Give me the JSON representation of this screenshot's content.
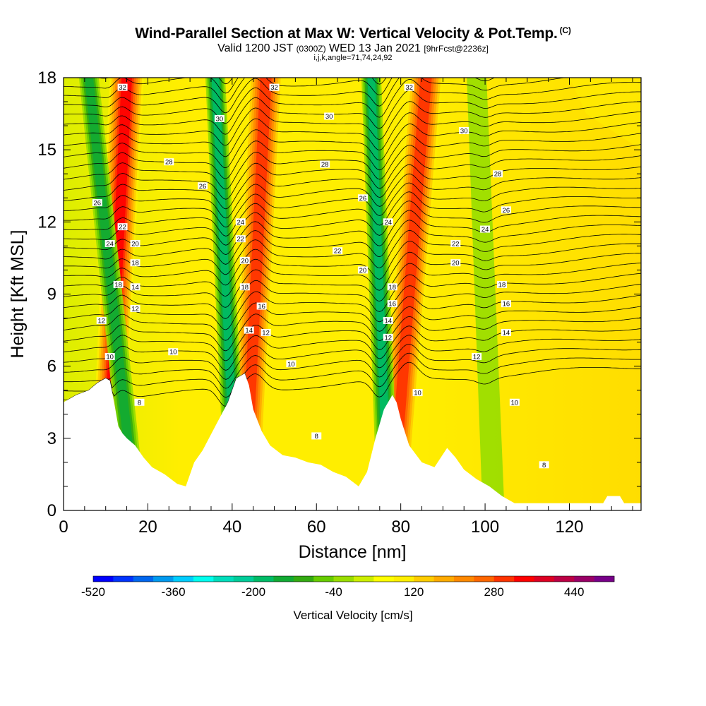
{
  "title": {
    "main": "Wind-Parallel Section at Max W: Vertical Velocity & Pot.Temp.",
    "tag": "(C)",
    "valid_prefix": "Valid 1200 JST",
    "valid_utc": "(0300Z)",
    "valid_date": "WED 13 Jan 2021",
    "forecast": "[9hrFcst@2236z]",
    "indices": "i,j,k,angle=71,74,24,92"
  },
  "chart_data": {
    "type": "heatmap",
    "xlabel": "Distance [nm]",
    "ylabel": "Height [Kft MSL]",
    "xlim": [
      0,
      137
    ],
    "ylim": [
      0,
      18
    ],
    "x_ticks": [
      0,
      20,
      40,
      60,
      80,
      100,
      120
    ],
    "y_ticks": [
      0,
      3,
      6,
      9,
      12,
      15,
      18
    ],
    "colorbar": {
      "title": "Vertical Velocity [cm/s]",
      "min": -520,
      "max": 520,
      "step": 40,
      "tick_labels": [
        -520,
        -360,
        -200,
        -40,
        120,
        280,
        440
      ],
      "colors": [
        "#0000ff",
        "#0033ff",
        "#0066ee",
        "#0099ee",
        "#00ccff",
        "#00ffee",
        "#00ddbb",
        "#00cc99",
        "#00bb66",
        "#11aa33",
        "#33aa11",
        "#66cc00",
        "#99dd00",
        "#ccee00",
        "#ffff00",
        "#ffee00",
        "#ffcc00",
        "#ffaa00",
        "#ff8800",
        "#ff6600",
        "#ff3300",
        "#ff0000",
        "#dd0022",
        "#bb0044",
        "#990066",
        "#770088"
      ]
    },
    "terrain_height_kft": [
      {
        "x": 0,
        "h": 4.5
      },
      {
        "x": 3,
        "h": 4.8
      },
      {
        "x": 6,
        "h": 5.0
      },
      {
        "x": 8,
        "h": 5.3
      },
      {
        "x": 10,
        "h": 5.5
      },
      {
        "x": 11,
        "h": 5.4
      },
      {
        "x": 12,
        "h": 4.5
      },
      {
        "x": 13,
        "h": 3.5
      },
      {
        "x": 14,
        "h": 3.2
      },
      {
        "x": 15,
        "h": 3.0
      },
      {
        "x": 17,
        "h": 2.7
      },
      {
        "x": 19,
        "h": 2.2
      },
      {
        "x": 21,
        "h": 1.8
      },
      {
        "x": 24,
        "h": 1.5
      },
      {
        "x": 27,
        "h": 1.1
      },
      {
        "x": 29,
        "h": 1.0
      },
      {
        "x": 31,
        "h": 2.0
      },
      {
        "x": 33,
        "h": 2.5
      },
      {
        "x": 36,
        "h": 3.5
      },
      {
        "x": 39,
        "h": 4.5
      },
      {
        "x": 41,
        "h": 5.5
      },
      {
        "x": 43,
        "h": 5.7
      },
      {
        "x": 44,
        "h": 5.2
      },
      {
        "x": 45,
        "h": 4.2
      },
      {
        "x": 47,
        "h": 3.3
      },
      {
        "x": 49,
        "h": 2.7
      },
      {
        "x": 52,
        "h": 2.3
      },
      {
        "x": 55,
        "h": 2.2
      },
      {
        "x": 58,
        "h": 2.0
      },
      {
        "x": 61,
        "h": 1.9
      },
      {
        "x": 64,
        "h": 1.6
      },
      {
        "x": 67,
        "h": 1.4
      },
      {
        "x": 70,
        "h": 1.0
      },
      {
        "x": 72,
        "h": 1.6
      },
      {
        "x": 74,
        "h": 3.0
      },
      {
        "x": 76,
        "h": 4.2
      },
      {
        "x": 78,
        "h": 4.8
      },
      {
        "x": 79,
        "h": 4.5
      },
      {
        "x": 80,
        "h": 3.8
      },
      {
        "x": 82,
        "h": 2.7
      },
      {
        "x": 85,
        "h": 2.0
      },
      {
        "x": 88,
        "h": 1.8
      },
      {
        "x": 91,
        "h": 2.6
      },
      {
        "x": 93,
        "h": 2.2
      },
      {
        "x": 95,
        "h": 1.7
      },
      {
        "x": 98,
        "h": 1.3
      },
      {
        "x": 101,
        "h": 1.0
      },
      {
        "x": 104,
        "h": 0.6
      },
      {
        "x": 107,
        "h": 0.3
      },
      {
        "x": 115,
        "h": 0.3
      },
      {
        "x": 120,
        "h": 0.3
      },
      {
        "x": 128,
        "h": 0.3
      },
      {
        "x": 129,
        "h": 0.6
      },
      {
        "x": 132,
        "h": 0.6
      },
      {
        "x": 133,
        "h": 0.3
      },
      {
        "x": 137,
        "h": 0.3
      }
    ],
    "updraft_bands": [
      {
        "x_bottom": 10,
        "x_top": 15,
        "peak_cm_s": 320
      },
      {
        "x_bottom": 43,
        "x_top": 48,
        "peak_cm_s": 280
      },
      {
        "x_bottom": 78,
        "x_top": 86,
        "peak_cm_s": 280
      }
    ],
    "downdraft_bands": [
      {
        "x_bottom": 17,
        "x_top": 6,
        "peak_cm_s": -160
      },
      {
        "x_bottom": 41,
        "x_top": 36,
        "peak_cm_s": -200
      },
      {
        "x_bottom": 77,
        "x_top": 73,
        "peak_cm_s": -200
      },
      {
        "x_bottom": 102,
        "x_top": 98,
        "peak_cm_s": -60
      }
    ],
    "theta_contour_labels": [
      {
        "text": "32",
        "x": 14,
        "y": 17.6
      },
      {
        "text": "32",
        "x": 50,
        "y": 17.6
      },
      {
        "text": "32",
        "x": 82,
        "y": 17.6
      },
      {
        "text": "30",
        "x": 37,
        "y": 16.3
      },
      {
        "text": "30",
        "x": 63,
        "y": 16.4
      },
      {
        "text": "30",
        "x": 95,
        "y": 15.8
      },
      {
        "text": "28",
        "x": 25,
        "y": 14.5
      },
      {
        "text": "28",
        "x": 62,
        "y": 14.4
      },
      {
        "text": "28",
        "x": 103,
        "y": 14.0
      },
      {
        "text": "26",
        "x": 33,
        "y": 13.5
      },
      {
        "text": "26",
        "x": 71,
        "y": 13.0
      },
      {
        "text": "26",
        "x": 105,
        "y": 12.5
      },
      {
        "text": "26",
        "x": 8,
        "y": 12.8
      },
      {
        "text": "24",
        "x": 42,
        "y": 12.0
      },
      {
        "text": "24",
        "x": 77,
        "y": 12.0
      },
      {
        "text": "24",
        "x": 100,
        "y": 11.7
      },
      {
        "text": "24",
        "x": 11,
        "y": 11.1
      },
      {
        "text": "22",
        "x": 14,
        "y": 11.8
      },
      {
        "text": "22",
        "x": 42,
        "y": 11.3
      },
      {
        "text": "22",
        "x": 65,
        "y": 10.8
      },
      {
        "text": "22",
        "x": 93,
        "y": 11.1
      },
      {
        "text": "20",
        "x": 17,
        "y": 11.1
      },
      {
        "text": "20",
        "x": 43,
        "y": 10.4
      },
      {
        "text": "20",
        "x": 71,
        "y": 10.0
      },
      {
        "text": "20",
        "x": 93,
        "y": 10.3
      },
      {
        "text": "18",
        "x": 17,
        "y": 10.3
      },
      {
        "text": "18",
        "x": 13,
        "y": 9.4
      },
      {
        "text": "18",
        "x": 43,
        "y": 9.3
      },
      {
        "text": "18",
        "x": 78,
        "y": 9.3
      },
      {
        "text": "18",
        "x": 104,
        "y": 9.4
      },
      {
        "text": "16",
        "x": 47,
        "y": 8.5
      },
      {
        "text": "16",
        "x": 78,
        "y": 8.6
      },
      {
        "text": "16",
        "x": 105,
        "y": 8.6
      },
      {
        "text": "14",
        "x": 17,
        "y": 9.3
      },
      {
        "text": "14",
        "x": 44,
        "y": 7.5
      },
      {
        "text": "14",
        "x": 77,
        "y": 7.9
      },
      {
        "text": "14",
        "x": 105,
        "y": 7.4
      },
      {
        "text": "12",
        "x": 17,
        "y": 8.4
      },
      {
        "text": "12",
        "x": 9,
        "y": 7.9
      },
      {
        "text": "12",
        "x": 48,
        "y": 7.4
      },
      {
        "text": "12",
        "x": 77,
        "y": 7.2
      },
      {
        "text": "12",
        "x": 98,
        "y": 6.4
      },
      {
        "text": "10",
        "x": 11,
        "y": 6.4
      },
      {
        "text": "10",
        "x": 26,
        "y": 6.6
      },
      {
        "text": "10",
        "x": 54,
        "y": 6.1
      },
      {
        "text": "10",
        "x": 84,
        "y": 4.9
      },
      {
        "text": "10",
        "x": 107,
        "y": 4.5
      },
      {
        "text": "8",
        "x": 18,
        "y": 4.5
      },
      {
        "text": "8",
        "x": 60,
        "y": 3.1
      },
      {
        "text": "8",
        "x": 114,
        "y": 1.9
      }
    ]
  }
}
